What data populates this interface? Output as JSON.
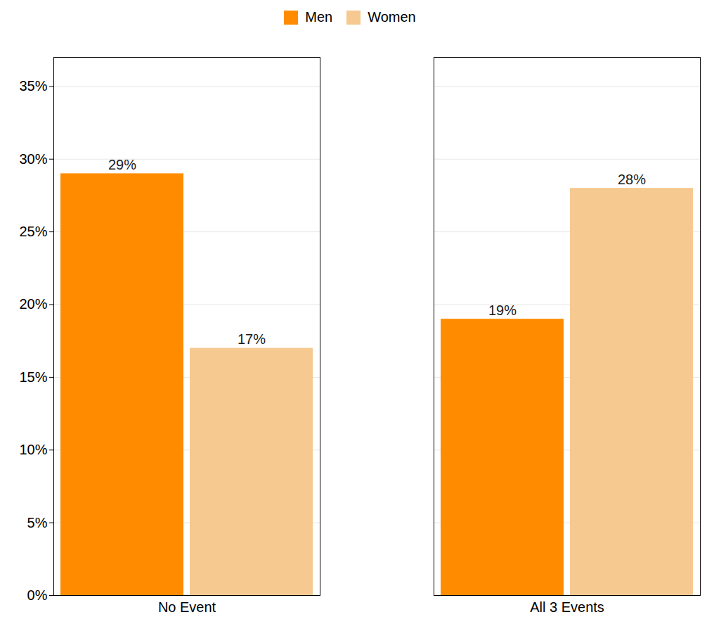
{
  "chart_data": {
    "type": "bar",
    "categories": [
      "No Event",
      "All 3 Events"
    ],
    "series": [
      {
        "name": "Men",
        "color": "#FF8C00",
        "values": [
          29,
          19
        ],
        "value_labels": [
          "29%",
          "19%"
        ]
      },
      {
        "name": "Women",
        "color": "#F5C990",
        "values": [
          17,
          28
        ],
        "value_labels": [
          "17%",
          "28%"
        ]
      }
    ],
    "ylim": [
      0,
      37
    ],
    "yticks": [
      {
        "value": 0,
        "label": "0%"
      },
      {
        "value": 5,
        "label": "5%"
      },
      {
        "value": 10,
        "label": "10%"
      },
      {
        "value": 15,
        "label": "15%"
      },
      {
        "value": 20,
        "label": "20%"
      },
      {
        "value": 25,
        "label": "25%"
      },
      {
        "value": 30,
        "label": "30%"
      },
      {
        "value": 35,
        "label": "35%"
      }
    ],
    "grid": true,
    "legend": "top",
    "data_labels": true
  }
}
